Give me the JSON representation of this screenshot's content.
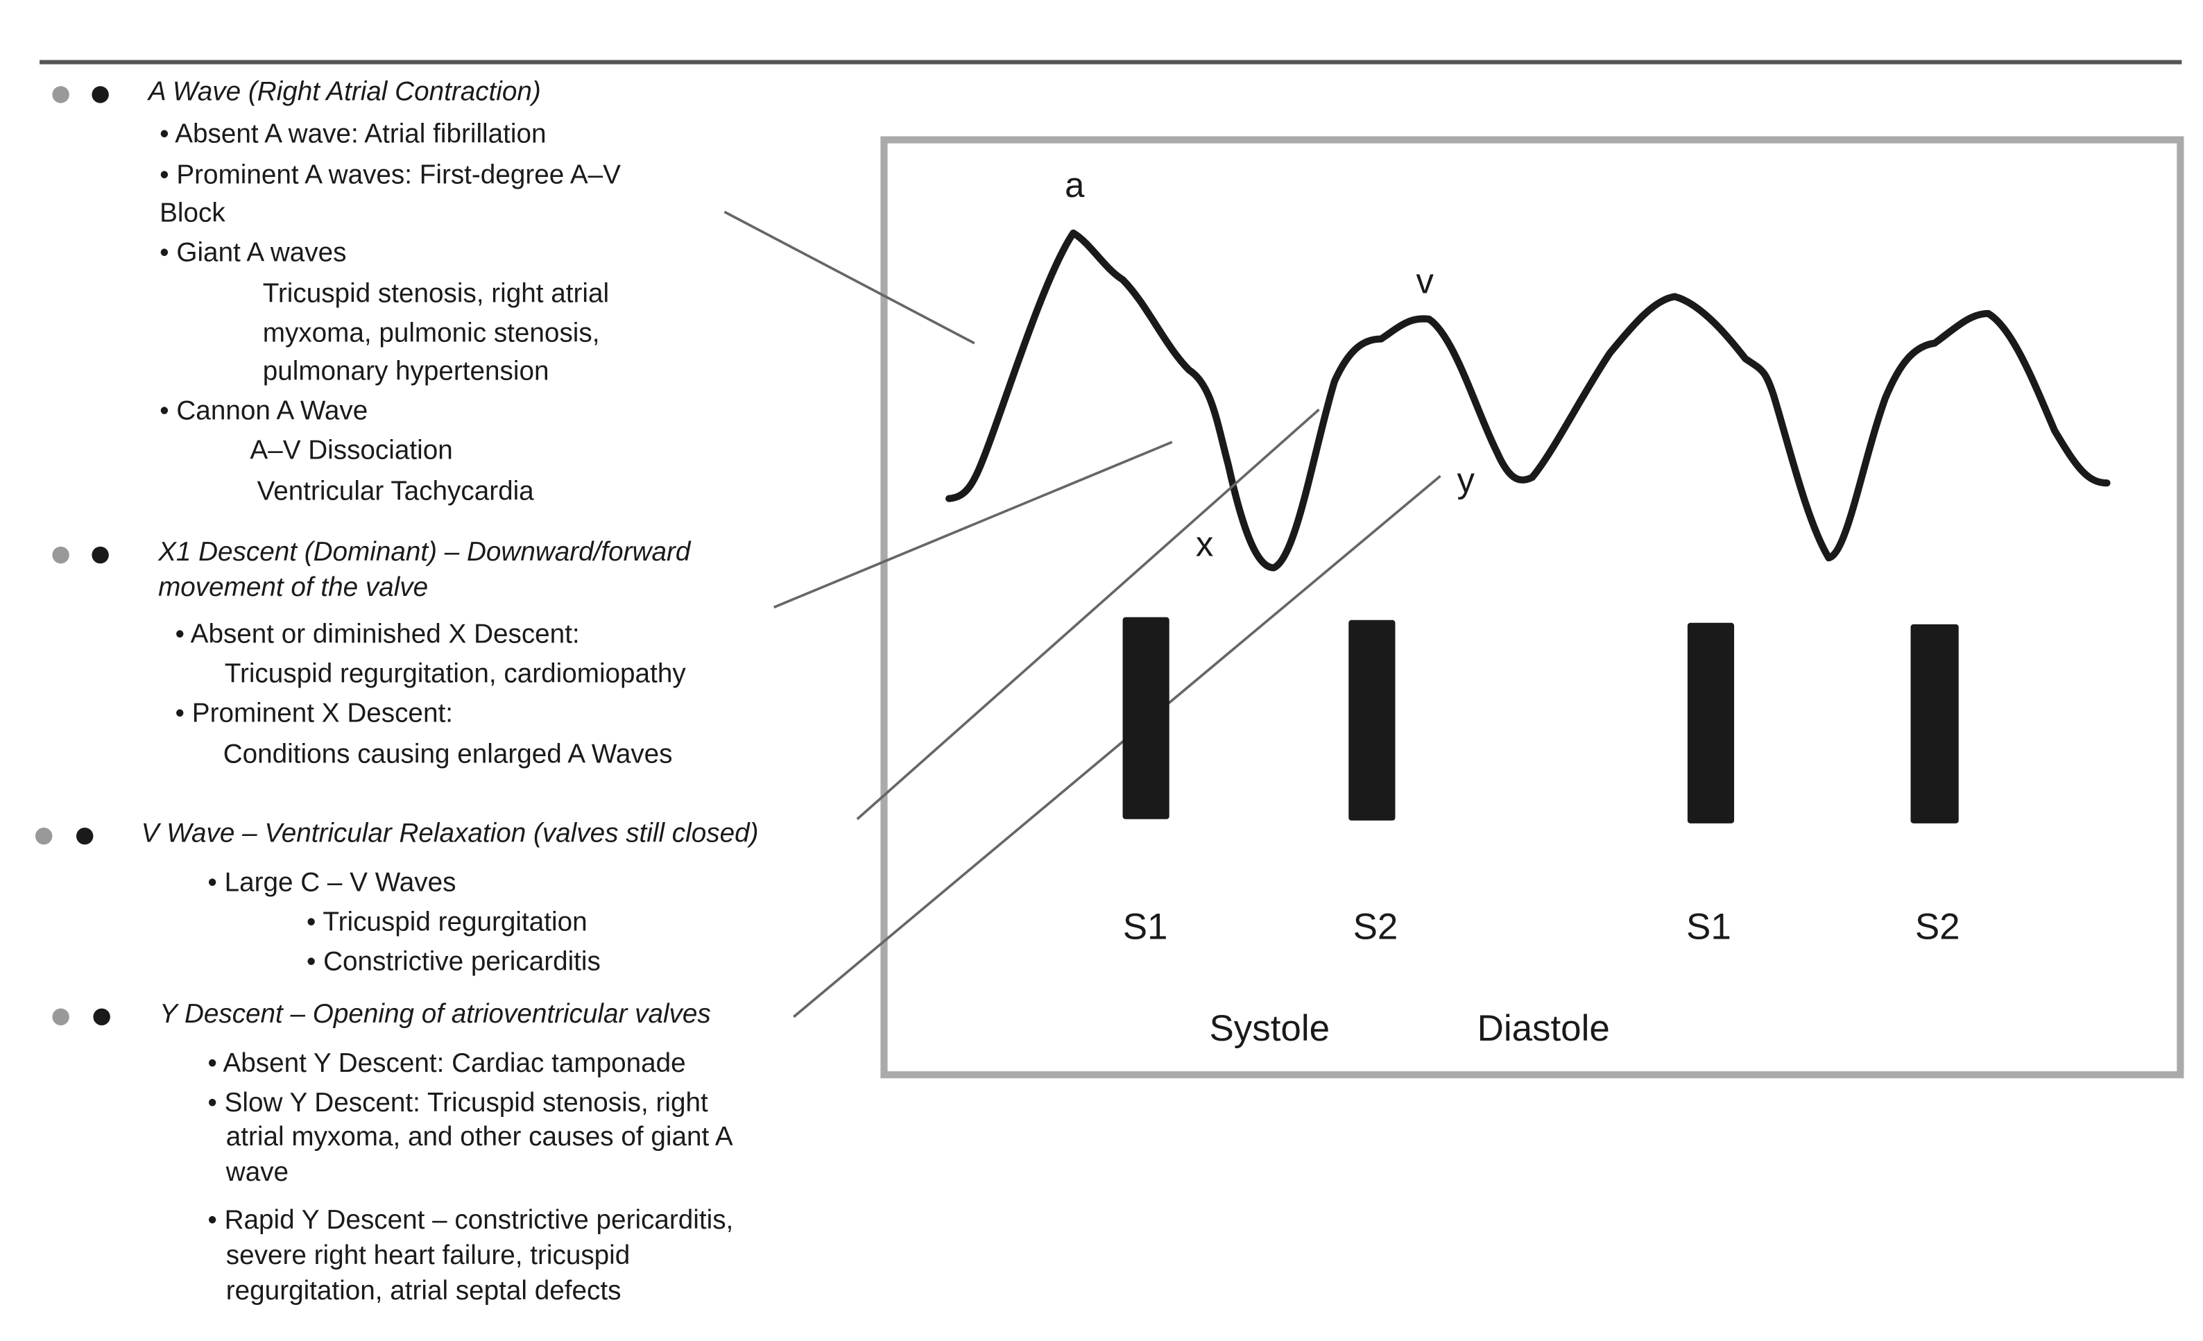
{
  "sections": [
    {
      "title": [
        "A Wave (Right Atrial Contraction)"
      ],
      "lines": [
        "• Absent A wave: Atrial fibrillation",
        "• Prominent A waves: First-degree A–V",
        "Block",
        "• Giant A waves",
        "Tricuspid stenosis, right atrial",
        "myxoma, pulmonic stenosis,",
        "pulmonary hypertension",
        "• Cannon A Wave",
        "A–V Dissociation",
        "Ventricular Tachycardia"
      ]
    },
    {
      "title": [
        "X1 Descent (Dominant) – Downward/forward",
        "movement of the valve"
      ],
      "lines": [
        "• Absent or diminished X Descent:",
        "Tricuspid regurgitation, cardiomiopathy",
        "• Prominent X Descent:",
        "Conditions causing enlarged A Waves"
      ]
    },
    {
      "title": [
        "V Wave – Ventricular Relaxation (valves still closed)"
      ],
      "lines": [
        "• Large C – V Waves",
        "• Tricuspid regurgitation",
        "• Constrictive pericarditis"
      ]
    },
    {
      "title": [
        "Y Descent – Opening of atrioventricular valves"
      ],
      "lines": [
        "• Absent Y Descent: Cardiac tamponade",
        "• Slow Y Descent: Tricuspid stenosis, right",
        "atrial myxoma, and other causes of giant A",
        "wave",
        "• Rapid Y Descent – constrictive pericarditis,",
        "severe right heart failure, tricuspid",
        "regurgitation, atrial septal defects"
      ]
    }
  ],
  "diagram": {
    "wave_labels": [
      "a",
      "v",
      "x",
      "y"
    ],
    "sounds": [
      "S1",
      "S2",
      "S1",
      "S2"
    ],
    "phases": [
      "Systole",
      "Diastole"
    ]
  }
}
